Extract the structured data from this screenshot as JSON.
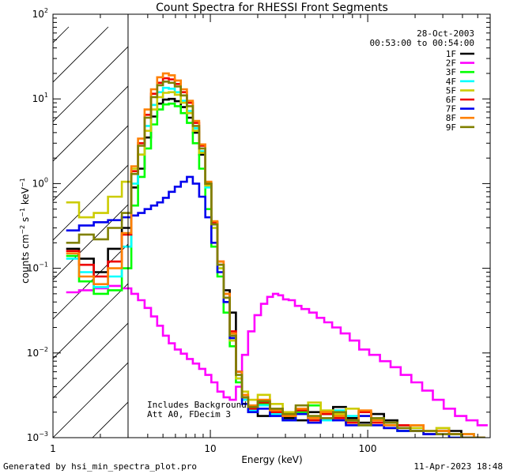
{
  "chart_data": {
    "type": "line",
    "style": "step",
    "title": "Count Spectra for RHESSI Front Segments",
    "xlabel": "Energy (keV)",
    "ylabel_parts": {
      "main": "counts cm",
      "sup1": "−2",
      "mid": " s",
      "sup2": "−1",
      "end": " keV",
      "sup3": "−1"
    },
    "xscale": "log",
    "yscale": "log",
    "xlim": [
      1,
      600
    ],
    "ylim": [
      0.001,
      100
    ],
    "x_ticks": [
      {
        "value": 1,
        "label": "1"
      },
      {
        "value": 10,
        "label": "10"
      },
      {
        "value": 100,
        "label": "100"
      }
    ],
    "y_ticks": [
      {
        "value": 0.001,
        "base": "10",
        "exp": "−3"
      },
      {
        "value": 0.01,
        "base": "10",
        "exp": "−2"
      },
      {
        "value": 0.1,
        "base": "10",
        "exp": "−1"
      },
      {
        "value": 1,
        "base": "10",
        "exp": "0"
      },
      {
        "value": 10,
        "base": "10",
        "exp": "1"
      },
      {
        "value": 100,
        "base": "10",
        "exp": "2"
      }
    ],
    "shaded_region": {
      "x_start": 1,
      "x_end": 3,
      "description": "hatched"
    },
    "date": "28-Oct-2003",
    "time_range": "00:53:00 to 00:54:00",
    "annotations": [
      "Includes Background",
      "Att A0, FDecim 3"
    ],
    "footer_left": "Generated by hsi_min_spectra_plot.pro",
    "footer_right": "11-Apr-2023 18:48",
    "legend_position": "top-right",
    "series": [
      {
        "name": "1F",
        "color": "#000000",
        "x": [
          1.3,
          1.65,
          2.0,
          2.5,
          3.0,
          3.3,
          3.65,
          4.0,
          4.4,
          4.8,
          5.2,
          5.7,
          6.2,
          6.8,
          7.4,
          8.1,
          8.9,
          9.7,
          10.6,
          11.6,
          12.7,
          13.9,
          15.2,
          16.6,
          18.2,
          22,
          26,
          32,
          38,
          46,
          55,
          66,
          80,
          96,
          115,
          140,
          170,
          205,
          250,
          300,
          360,
          430,
          520
        ],
        "y": [
          0.17,
          0.13,
          0.09,
          0.17,
          0.3,
          0.9,
          1.5,
          3.5,
          6.2,
          8.8,
          9.8,
          10.0,
          9.4,
          8.0,
          6.0,
          4.0,
          2.2,
          1.0,
          0.33,
          0.11,
          0.055,
          0.03,
          0.006,
          0.003,
          0.0022,
          0.0018,
          0.0021,
          0.0017,
          0.0016,
          0.002,
          0.0019,
          0.0023,
          0.0017,
          0.0015,
          0.0019,
          0.0016,
          0.0012,
          0.0014,
          0.0011,
          0.0013,
          0.0012,
          0.0011,
          0.001
        ]
      },
      {
        "name": "2F",
        "color": "#ff00ff",
        "x": [
          1.3,
          1.65,
          2.0,
          2.5,
          3.0,
          3.3,
          3.65,
          4.0,
          4.4,
          4.8,
          5.2,
          5.7,
          6.2,
          6.8,
          7.4,
          8.1,
          8.9,
          9.7,
          10.6,
          11.6,
          12.7,
          13.9,
          15.2,
          16.6,
          18.2,
          20,
          22,
          24,
          26,
          28,
          30,
          33,
          36,
          40,
          45,
          50,
          56,
          63,
          72,
          82,
          95,
          110,
          130,
          150,
          175,
          205,
          240,
          280,
          330,
          390,
          460,
          540
        ],
        "y": [
          0.052,
          0.055,
          0.058,
          0.062,
          0.058,
          0.05,
          0.042,
          0.034,
          0.027,
          0.021,
          0.016,
          0.013,
          0.011,
          0.0098,
          0.0085,
          0.0075,
          0.0065,
          0.0055,
          0.0045,
          0.0035,
          0.003,
          0.0028,
          0.004,
          0.0095,
          0.018,
          0.028,
          0.038,
          0.046,
          0.05,
          0.048,
          0.043,
          0.042,
          0.036,
          0.033,
          0.03,
          0.026,
          0.023,
          0.02,
          0.017,
          0.014,
          0.011,
          0.0095,
          0.008,
          0.0068,
          0.0055,
          0.0045,
          0.0036,
          0.0028,
          0.0022,
          0.0018,
          0.0016,
          0.0014
        ]
      },
      {
        "name": "3F",
        "color": "#00ff00",
        "x": [
          1.3,
          1.65,
          2.0,
          2.5,
          3.0,
          3.3,
          3.65,
          4.0,
          4.4,
          4.8,
          5.2,
          5.7,
          6.2,
          6.8,
          7.4,
          8.1,
          8.9,
          9.7,
          10.6,
          11.6,
          12.7,
          13.9,
          15.2,
          16.6,
          18.2,
          22,
          26,
          32,
          38,
          46,
          55,
          66,
          80,
          96,
          115,
          140,
          170,
          205,
          250,
          300,
          360,
          430,
          520
        ],
        "y": [
          0.14,
          0.07,
          0.05,
          0.055,
          0.1,
          0.55,
          1.2,
          2.6,
          5.0,
          7.5,
          8.6,
          8.8,
          8.2,
          6.8,
          5.2,
          3.0,
          1.5,
          0.5,
          0.18,
          0.08,
          0.03,
          0.012,
          0.0045,
          0.003,
          0.002,
          0.0025,
          0.0022,
          0.0018,
          0.002,
          0.0024,
          0.0019,
          0.0018,
          0.0015,
          0.002,
          0.0016,
          0.0013,
          0.0014,
          0.0012,
          0.0011,
          0.0012,
          0.0011,
          0.001,
          0.001
        ]
      },
      {
        "name": "4F",
        "color": "#00ffff",
        "x": [
          1.3,
          1.65,
          2.0,
          2.5,
          3.0,
          3.3,
          3.65,
          4.0,
          4.4,
          4.8,
          5.2,
          5.7,
          6.2,
          6.8,
          7.4,
          8.1,
          8.9,
          9.7,
          10.6,
          11.6,
          12.7,
          13.9,
          15.2,
          16.6,
          18.2,
          22,
          26,
          32,
          38,
          46,
          55,
          66,
          80,
          96,
          115,
          140,
          170,
          205,
          250,
          300,
          360,
          430,
          520
        ],
        "y": [
          0.13,
          0.09,
          0.06,
          0.08,
          0.18,
          1.0,
          2.2,
          4.8,
          8.5,
          12.0,
          13.5,
          13.2,
          12.0,
          9.5,
          7.2,
          4.5,
          2.4,
          0.9,
          0.3,
          0.1,
          0.04,
          0.014,
          0.005,
          0.0028,
          0.0021,
          0.0024,
          0.0019,
          0.0016,
          0.0019,
          0.0017,
          0.0016,
          0.0021,
          0.0018,
          0.0014,
          0.0016,
          0.0014,
          0.0012,
          0.0013,
          0.0011,
          0.0012,
          0.001,
          0.0011,
          0.001
        ]
      },
      {
        "name": "5F",
        "color": "#cccc00",
        "x": [
          1.3,
          1.65,
          2.0,
          2.5,
          3.0,
          3.3,
          3.65,
          4.0,
          4.4,
          4.8,
          5.2,
          5.7,
          6.2,
          6.8,
          7.4,
          8.1,
          8.9,
          9.7,
          10.6,
          11.6,
          12.7,
          13.9,
          15.2,
          16.6,
          18.2,
          22,
          26,
          32,
          38,
          46,
          55,
          66,
          80,
          96,
          115,
          140,
          170,
          205,
          250,
          300,
          360,
          430,
          520
        ],
        "y": [
          0.6,
          0.4,
          0.45,
          0.7,
          1.05,
          1.5,
          2.2,
          4.2,
          7.5,
          10.5,
          11.8,
          12.0,
          11.2,
          9.0,
          6.8,
          4.2,
          2.3,
          0.95,
          0.3,
          0.1,
          0.04,
          0.014,
          0.005,
          0.0035,
          0.0028,
          0.0032,
          0.0025,
          0.002,
          0.0022,
          0.0026,
          0.0021,
          0.0019,
          0.0022,
          0.0018,
          0.0016,
          0.0015,
          0.0014,
          0.0013,
          0.0012,
          0.0013,
          0.0011,
          0.0011,
          0.001
        ]
      },
      {
        "name": "6F",
        "color": "#ee0000",
        "x": [
          1.3,
          1.65,
          2.0,
          2.5,
          3.0,
          3.3,
          3.65,
          4.0,
          4.4,
          4.8,
          5.2,
          5.7,
          6.2,
          6.8,
          7.4,
          8.1,
          8.9,
          9.7,
          10.6,
          11.6,
          12.7,
          13.9,
          15.2,
          16.6,
          18.2,
          22,
          26,
          32,
          38,
          46,
          55,
          66,
          80,
          96,
          115,
          140,
          170,
          205,
          250,
          300,
          360,
          430,
          520
        ],
        "y": [
          0.16,
          0.11,
          0.08,
          0.12,
          0.25,
          1.4,
          3.0,
          6.5,
          11.5,
          15.5,
          17.5,
          17.0,
          15.0,
          12.0,
          9.0,
          5.2,
          2.8,
          1.0,
          0.35,
          0.12,
          0.05,
          0.018,
          0.006,
          0.003,
          0.0022,
          0.0026,
          0.002,
          0.0018,
          0.0021,
          0.0016,
          0.0019,
          0.0017,
          0.0015,
          0.002,
          0.0015,
          0.0013,
          0.0014,
          0.0012,
          0.0011,
          0.0012,
          0.0011,
          0.001,
          0.001
        ]
      },
      {
        "name": "7F",
        "color": "#0000ee",
        "x": [
          1.3,
          1.65,
          2.0,
          2.5,
          3.0,
          3.3,
          3.65,
          4.0,
          4.4,
          4.8,
          5.2,
          5.7,
          6.2,
          6.8,
          7.4,
          8.1,
          8.9,
          9.7,
          10.6,
          11.6,
          12.7,
          13.9,
          15.2,
          16.6,
          18.2,
          22,
          26,
          32,
          38,
          46,
          55,
          66,
          80,
          96,
          115,
          140,
          170,
          205,
          250,
          300,
          360,
          430,
          520
        ],
        "y": [
          0.28,
          0.32,
          0.35,
          0.37,
          0.4,
          0.42,
          0.45,
          0.5,
          0.55,
          0.6,
          0.68,
          0.8,
          0.92,
          1.05,
          1.2,
          1.0,
          0.7,
          0.4,
          0.2,
          0.09,
          0.04,
          0.015,
          0.006,
          0.0025,
          0.002,
          0.0022,
          0.0018,
          0.0016,
          0.0019,
          0.0015,
          0.0017,
          0.0016,
          0.0014,
          0.0018,
          0.0014,
          0.0013,
          0.0012,
          0.0012,
          0.0011,
          0.0011,
          0.001,
          0.001,
          0.001
        ]
      },
      {
        "name": "8F",
        "color": "#ff8000",
        "x": [
          1.3,
          1.65,
          2.0,
          2.5,
          3.0,
          3.3,
          3.65,
          4.0,
          4.4,
          4.8,
          5.2,
          5.7,
          6.2,
          6.8,
          7.4,
          8.1,
          8.9,
          9.7,
          10.6,
          11.6,
          12.7,
          13.9,
          15.2,
          16.6,
          18.2,
          22,
          26,
          32,
          38,
          46,
          55,
          66,
          80,
          96,
          115,
          140,
          170,
          205,
          250,
          300,
          360,
          430,
          520
        ],
        "y": [
          0.15,
          0.08,
          0.065,
          0.1,
          0.26,
          1.6,
          3.4,
          7.5,
          13.0,
          18.0,
          20.0,
          19.0,
          16.5,
          13.0,
          9.5,
          5.5,
          2.9,
          1.05,
          0.36,
          0.12,
          0.05,
          0.017,
          0.006,
          0.0032,
          0.0024,
          0.0028,
          0.0021,
          0.0018,
          0.0022,
          0.0017,
          0.002,
          0.0018,
          0.0016,
          0.0021,
          0.0016,
          0.0014,
          0.0013,
          0.0014,
          0.0012,
          0.0012,
          0.0011,
          0.0011,
          0.001
        ]
      },
      {
        "name": "9F",
        "color": "#808000",
        "x": [
          1.3,
          1.65,
          2.0,
          2.5,
          3.0,
          3.3,
          3.65,
          4.0,
          4.4,
          4.8,
          5.2,
          5.7,
          6.2,
          6.8,
          7.4,
          8.1,
          8.9,
          9.7,
          10.6,
          11.6,
          12.7,
          13.9,
          15.2,
          16.6,
          18.2,
          22,
          26,
          32,
          38,
          46,
          55,
          66,
          80,
          96,
          115,
          140,
          170,
          205,
          250,
          300,
          360,
          430,
          520
        ],
        "y": [
          0.2,
          0.25,
          0.22,
          0.3,
          0.45,
          1.3,
          2.8,
          6.0,
          10.5,
          14.5,
          16.0,
          15.5,
          14.0,
          11.0,
          8.2,
          4.8,
          2.6,
          1.0,
          0.33,
          0.11,
          0.045,
          0.016,
          0.0055,
          0.003,
          0.0023,
          0.0027,
          0.0022,
          0.0019,
          0.0024,
          0.0018,
          0.0017,
          0.002,
          0.0016,
          0.0014,
          0.0017,
          0.0015,
          0.0013,
          0.0012,
          0.0012,
          0.0011,
          0.0011,
          0.001,
          0.001
        ]
      }
    ]
  }
}
